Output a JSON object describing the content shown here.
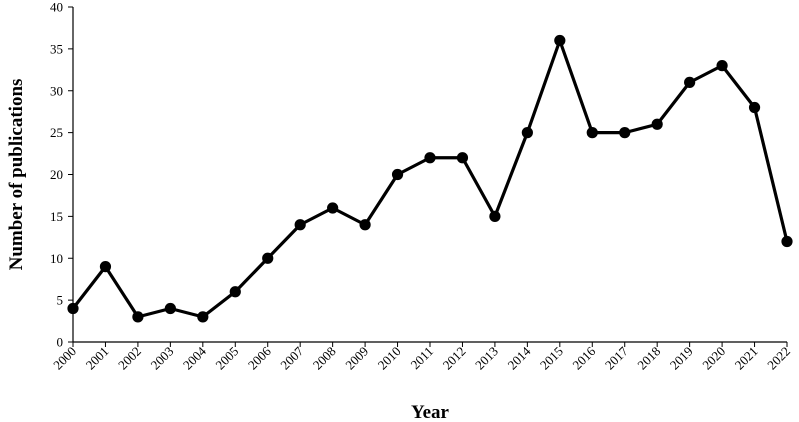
{
  "chart_data": {
    "type": "line",
    "title": "",
    "xlabel": "Year",
    "ylabel": "Number of publications",
    "categories": [
      "2000",
      "2001",
      "2002",
      "2003",
      "2004",
      "2005",
      "2006",
      "2007",
      "2008",
      "2009",
      "2010",
      "2011",
      "2012",
      "2013",
      "2014",
      "2015",
      "2016",
      "2017",
      "2018",
      "2019",
      "2020",
      "2021",
      "2022"
    ],
    "series": [
      {
        "values": [
          4,
          9,
          3,
          4,
          3,
          6,
          10,
          14,
          16,
          14,
          20,
          22,
          22,
          15,
          25,
          36,
          25,
          25,
          26,
          31,
          33,
          28,
          12
        ]
      }
    ],
    "ylim": [
      0,
      40
    ],
    "yticks": [
      0,
      5,
      10,
      15,
      20,
      25,
      30,
      35,
      40
    ],
    "grid": false,
    "legend": "none",
    "line_color": "#000000",
    "marker": "filled-circle"
  }
}
